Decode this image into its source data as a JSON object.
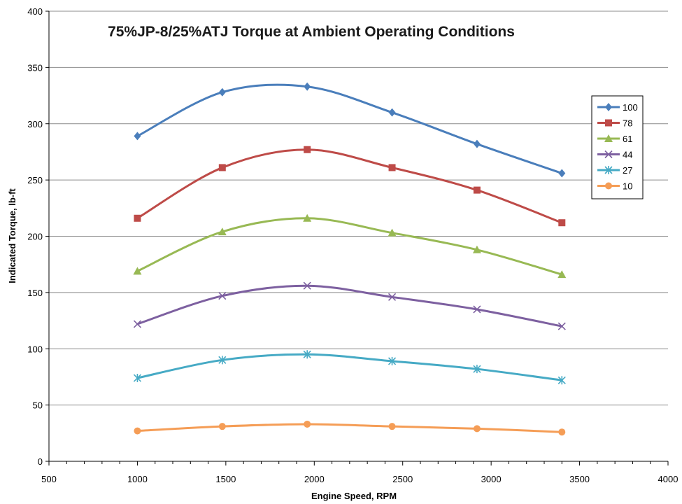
{
  "chart_data": {
    "type": "line",
    "title": "75%JP-8/25%ATJ Torque at Ambient Operating Conditions",
    "xlabel": "Engine Speed, RPM",
    "ylabel": "Indicated Torque, lb-ft",
    "xlim": [
      500,
      4000
    ],
    "ylim": [
      0,
      400
    ],
    "xticks": [
      "500",
      "1000",
      "1500",
      "2000",
      "2500",
      "3000",
      "3500",
      "4000"
    ],
    "yticks": [
      "0",
      "50",
      "100",
      "150",
      "200",
      "250",
      "300",
      "350",
      "400"
    ],
    "grid": "horizontal",
    "legend_position": "right",
    "series": [
      {
        "name": "100",
        "color": "#4a7ebb",
        "marker": "diamond",
        "x": [
          1000,
          1480,
          1960,
          2440,
          2920,
          3400
        ],
        "y": [
          289,
          328,
          333,
          310,
          282,
          256
        ]
      },
      {
        "name": "78",
        "color": "#be4b48",
        "marker": "square",
        "x": [
          1000,
          1480,
          1960,
          2440,
          2920,
          3400
        ],
        "y": [
          216,
          261,
          277,
          261,
          241,
          212
        ]
      },
      {
        "name": "61",
        "color": "#98b954",
        "marker": "triangle",
        "x": [
          1000,
          1480,
          1960,
          2440,
          2920,
          3400
        ],
        "y": [
          169,
          204,
          216,
          203,
          188,
          166
        ]
      },
      {
        "name": "44",
        "color": "#7d60a0",
        "marker": "x",
        "x": [
          1000,
          1480,
          1960,
          2440,
          2920,
          3400
        ],
        "y": [
          122,
          147,
          156,
          146,
          135,
          120
        ]
      },
      {
        "name": "27",
        "color": "#46aac5",
        "marker": "star",
        "x": [
          1000,
          1480,
          1960,
          2440,
          2920,
          3400
        ],
        "y": [
          74,
          90,
          95,
          89,
          82,
          72
        ]
      },
      {
        "name": "10",
        "color": "#f59d56",
        "marker": "circle",
        "x": [
          1000,
          1480,
          1960,
          2440,
          2920,
          3400
        ],
        "y": [
          27,
          31,
          33,
          31,
          29,
          26
        ]
      }
    ]
  }
}
